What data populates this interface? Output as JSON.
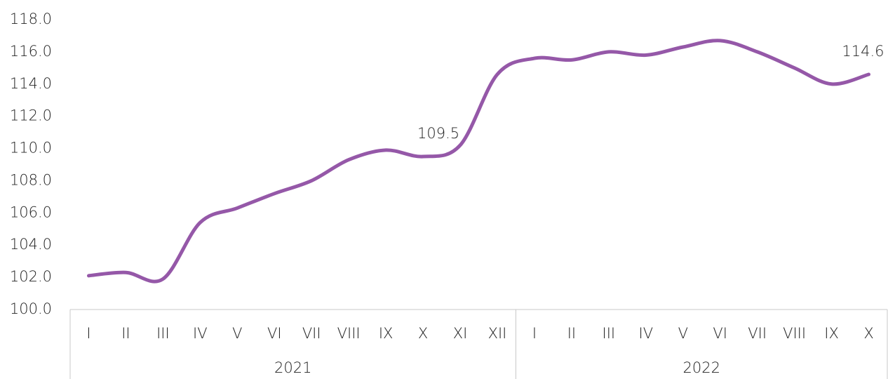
{
  "chart_data": {
    "type": "line",
    "groups": [
      {
        "name": "2021",
        "months": [
          "I",
          "II",
          "III",
          "IV",
          "V",
          "VI",
          "VII",
          "VIII",
          "IX",
          "X",
          "XI",
          "XII"
        ]
      },
      {
        "name": "2022",
        "months": [
          "I",
          "II",
          "III",
          "IV",
          "V",
          "VI",
          "VII",
          "VIII",
          "IX",
          "X"
        ]
      }
    ],
    "series": [
      {
        "color": "#9558a8",
        "values": [
          102.1,
          102.3,
          101.9,
          105.4,
          106.3,
          107.2,
          108.0,
          109.3,
          109.9,
          109.5,
          110.2,
          114.6,
          115.6,
          115.5,
          116.0,
          115.8,
          116.3,
          116.7,
          116.0,
          115.0,
          114.0,
          114.6
        ],
        "value_labels": [
          null,
          null,
          null,
          null,
          null,
          null,
          null,
          null,
          null,
          "109.5",
          null,
          null,
          null,
          null,
          null,
          null,
          null,
          null,
          null,
          null,
          null,
          "114.6"
        ]
      }
    ],
    "ylim": [
      100,
      118
    ],
    "yticks": [
      {
        "value": 100,
        "label": "100.0"
      },
      {
        "value": 102,
        "label": "102.0"
      },
      {
        "value": 104,
        "label": "104.0"
      },
      {
        "value": 106,
        "label": "106.0"
      },
      {
        "value": 108,
        "label": "108.0"
      },
      {
        "value": 110,
        "label": "110.0"
      },
      {
        "value": 112,
        "label": "112.0"
      },
      {
        "value": 114,
        "label": "114.0"
      },
      {
        "value": 116,
        "label": "116.0"
      },
      {
        "value": 118,
        "label": "118.0"
      }
    ],
    "grid": false
  }
}
